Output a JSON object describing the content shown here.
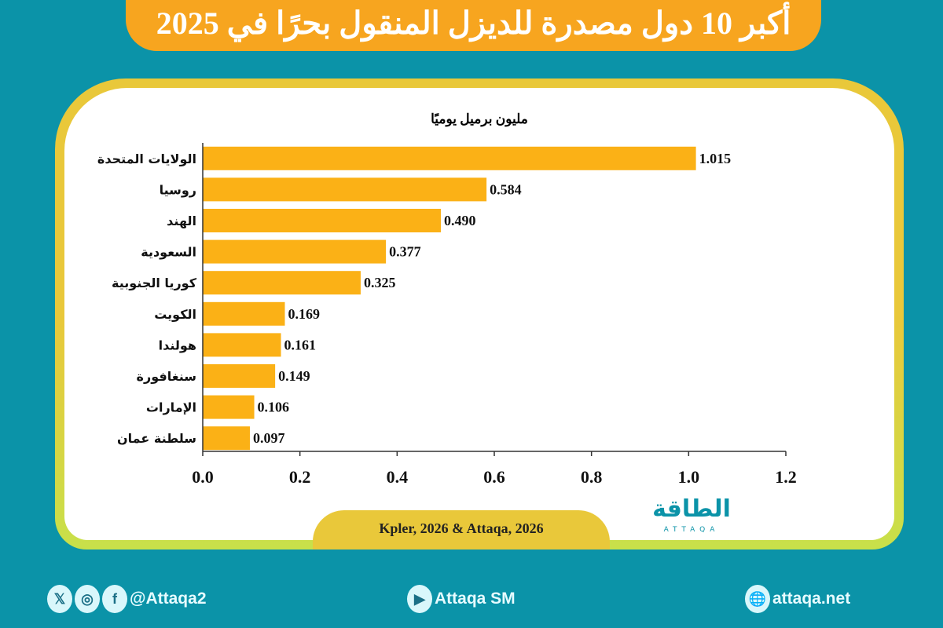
{
  "title": "أكبر 10 دول مصدرة للديزل المنقول بحرًا في 2025",
  "source": "Kpler, 2026 & Attaqa, 2026",
  "logo": {
    "arabic": "الطاقة",
    "latin": "ATTAQA"
  },
  "footer": {
    "social_handle": "@Attaqa2",
    "youtube": "Attaqa SM",
    "website": "attaqa.net",
    "icons": [
      "x-icon",
      "instagram-icon",
      "facebook-icon",
      "youtube-icon",
      "globe-icon"
    ]
  },
  "colors": {
    "background": "#0b93a8",
    "title_bar": "#f7a51f",
    "bar": "#fbb116"
  },
  "chart_data": {
    "type": "bar",
    "orientation": "horizontal",
    "unit_label": "مليون برميل يوميًا",
    "categories": [
      "الولايات المتحدة",
      "روسيا",
      "الهند",
      "السعودية",
      "كوريا الجنوبية",
      "الكويت",
      "هولندا",
      "سنغافورة",
      "الإمارات",
      "سلطنة عمان"
    ],
    "values": [
      1.015,
      0.584,
      0.49,
      0.377,
      0.325,
      0.169,
      0.161,
      0.149,
      0.106,
      0.097
    ],
    "data_labels": [
      "1.015",
      "0.584",
      "0.490",
      "0.377",
      "0.325",
      "0.169",
      "0.161",
      "0.149",
      "0.106",
      "0.097"
    ],
    "xlim": [
      0,
      1.2
    ],
    "xticks": [
      "0.0",
      "0.2",
      "0.4",
      "0.6",
      "0.8",
      "1.0",
      "1.2"
    ],
    "grid": false
  }
}
